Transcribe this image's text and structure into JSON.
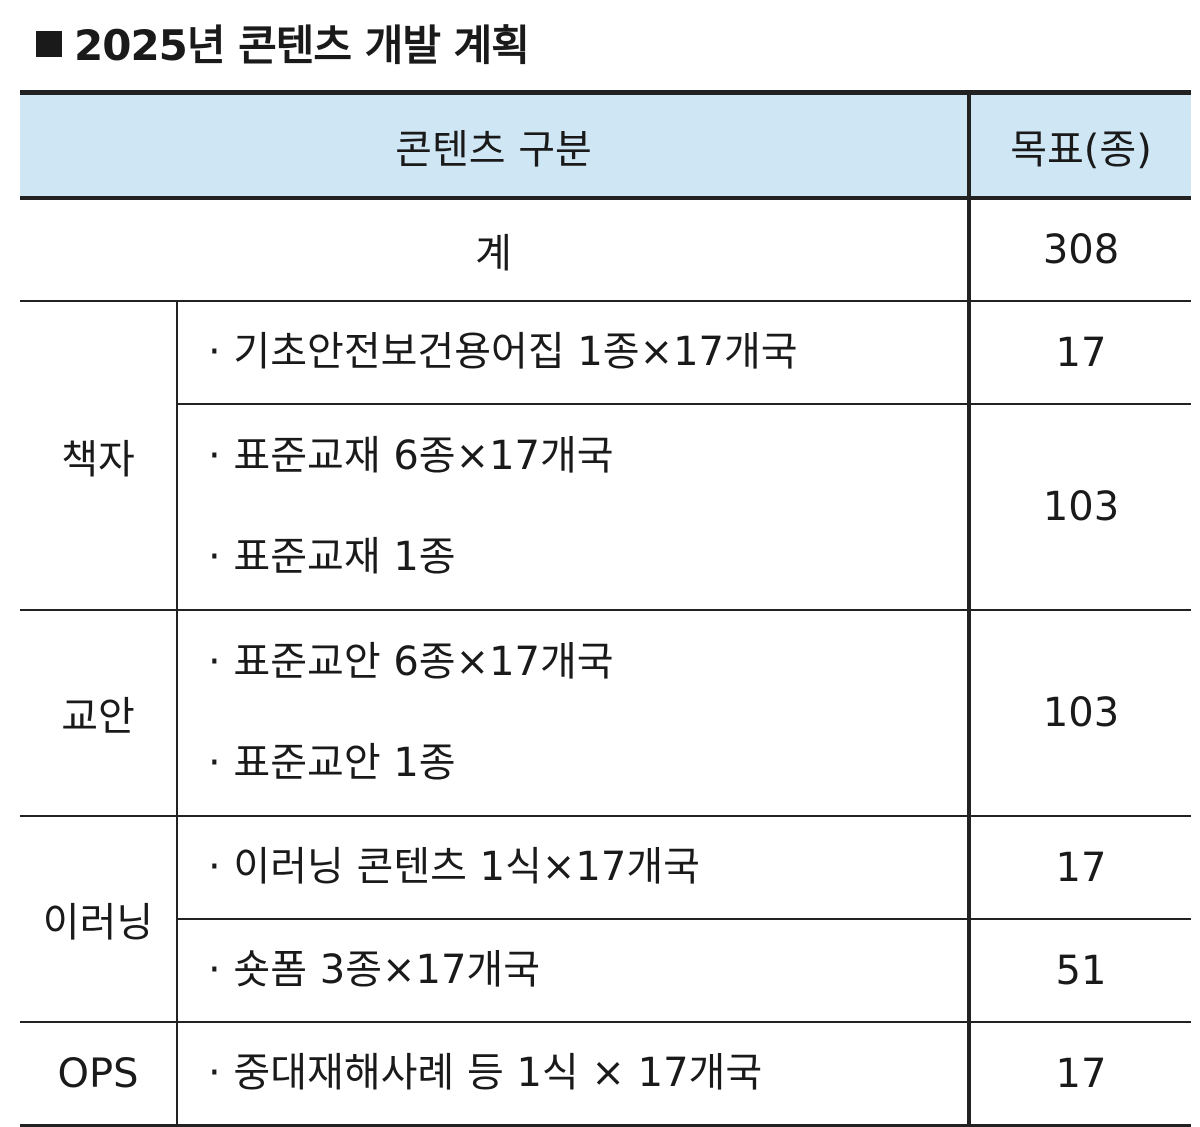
{
  "title": "2025년 콘텐츠 개발 계획",
  "header": {
    "division": "콘텐츠 구분",
    "target": "목표(종)"
  },
  "total": {
    "label": "계",
    "value": "308"
  },
  "rows": [
    {
      "category": "책자",
      "items": [
        "· 기초안전보건용어집 1종×17개국"
      ],
      "value": "17"
    },
    {
      "items": [
        "· 표준교재 6종×17개국",
        "· 표준교재 1종"
      ],
      "value": "103"
    },
    {
      "category": "교안",
      "items": [
        "· 표준교안 6종×17개국",
        "· 표준교안 1종"
      ],
      "value": "103"
    },
    {
      "category": "이러닝",
      "items": [
        "· 이러닝 콘텐츠 1식×17개국"
      ],
      "value": "17"
    },
    {
      "items": [
        "· 숏폼 3종×17개국"
      ],
      "value": "51"
    },
    {
      "category": "OPS",
      "items": [
        "· 중대재해사례 등 1식 × 17개국"
      ],
      "value": "17"
    }
  ],
  "colors": {
    "header_bg": "#cfe6f5",
    "border": "#222222"
  }
}
